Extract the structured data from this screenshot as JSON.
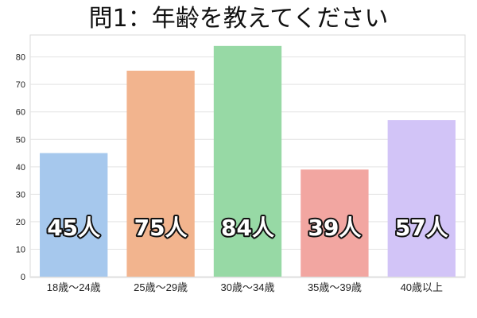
{
  "chart_data": {
    "type": "bar",
    "title": "問1：年齢を教えてください",
    "xlabel": "",
    "ylabel": "",
    "categories": [
      "18歳～24歳",
      "25歳～29歳",
      "30歳～34歳",
      "35歳～39歳",
      "40歳以上"
    ],
    "values": [
      45,
      75,
      84,
      39,
      57
    ],
    "data_labels": [
      "45人",
      "75人",
      "84人",
      "39人",
      "57人"
    ],
    "colors": [
      "#a6c8ed",
      "#f2b48e",
      "#97d9a5",
      "#f2a6a1",
      "#d2c4f7"
    ],
    "ylim": [
      0,
      88
    ],
    "yticks": [
      0,
      10,
      20,
      30,
      40,
      50,
      60,
      70,
      80
    ],
    "grid": true,
    "legend": "none"
  }
}
